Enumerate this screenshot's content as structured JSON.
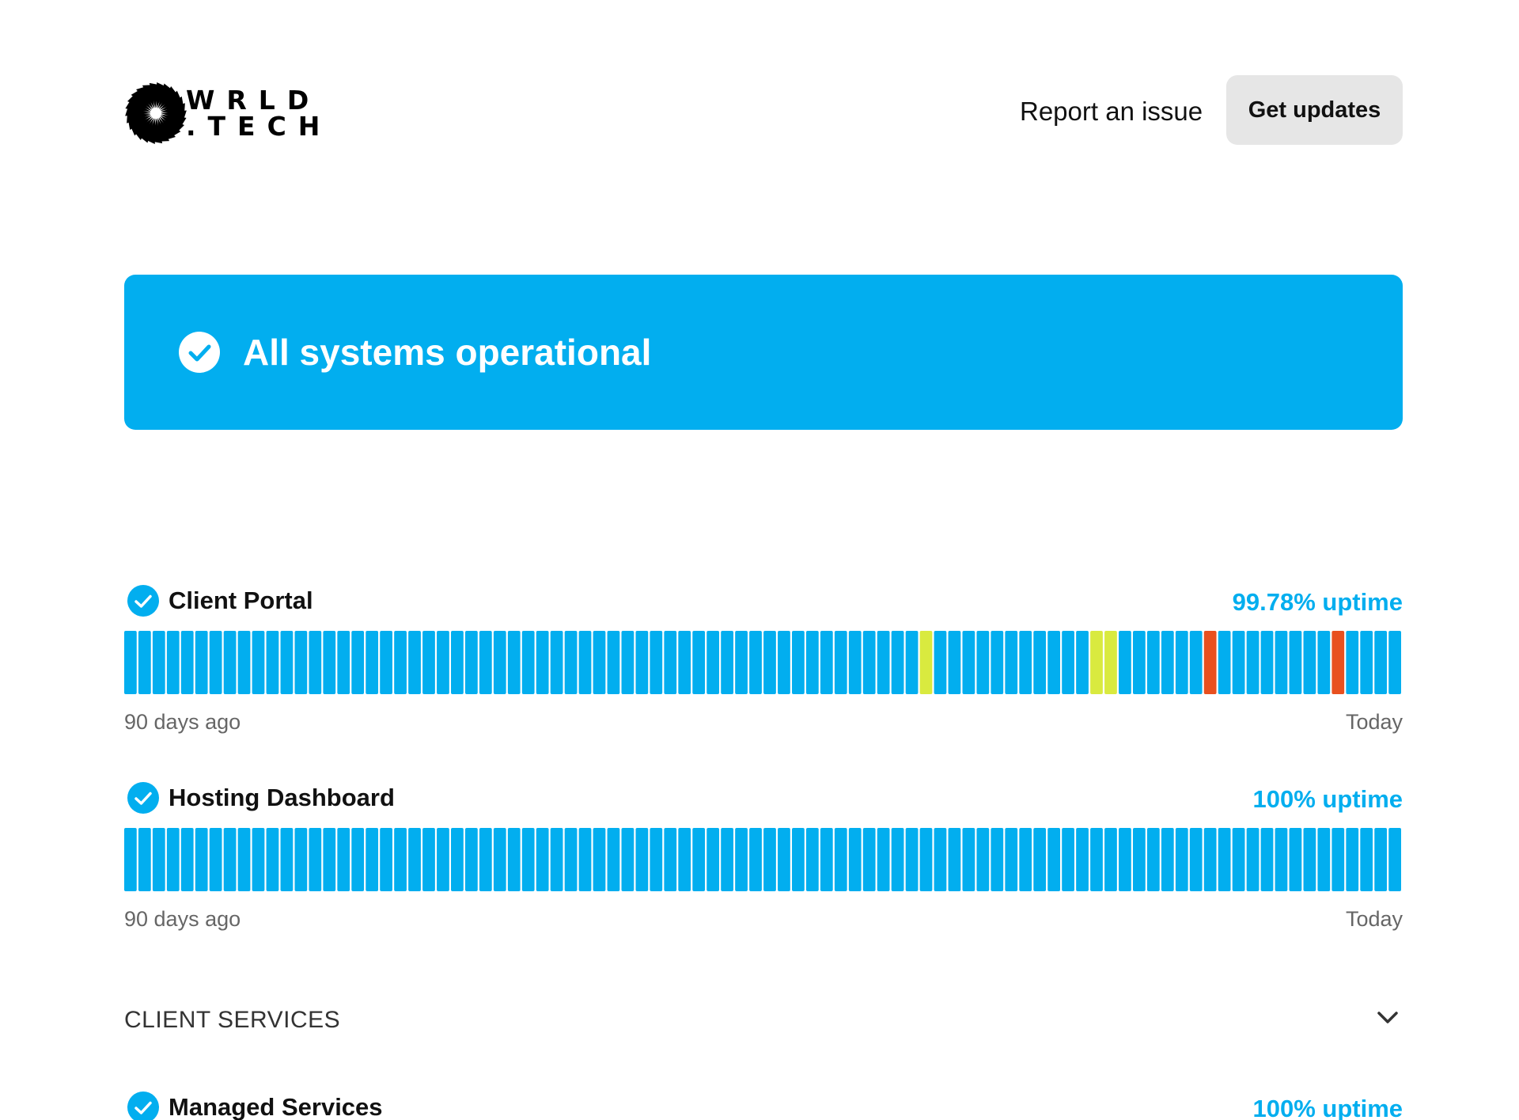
{
  "header": {
    "logo_lines": [
      "WRLD",
      ".TECH"
    ],
    "report_label": "Report an issue",
    "updates_label": "Get updates"
  },
  "banner": {
    "text": "All systems operational",
    "icon": "check-circle-icon",
    "color": "#02aeef"
  },
  "status_colors": {
    "operational": "#02aeef",
    "degraded": "#d9ea3f",
    "outage": "#e8501f"
  },
  "components": [
    {
      "name": "Client Portal",
      "uptime": "99.78% uptime",
      "start_label": "90 days ago",
      "end_label": "Today",
      "days": 90,
      "incidents": [
        {
          "day": 56,
          "status": "degraded"
        },
        {
          "day": 68,
          "status": "degraded"
        },
        {
          "day": 69,
          "status": "degraded"
        },
        {
          "day": 76,
          "status": "outage"
        },
        {
          "day": 85,
          "status": "outage"
        }
      ]
    },
    {
      "name": "Hosting Dashboard",
      "uptime": "100% uptime",
      "start_label": "90 days ago",
      "end_label": "Today",
      "days": 90,
      "incidents": []
    }
  ],
  "group": {
    "title": "CLIENT SERVICES",
    "icon": "chevron-down-icon",
    "items": [
      {
        "name": "Managed Services",
        "uptime": "100% uptime"
      }
    ]
  }
}
